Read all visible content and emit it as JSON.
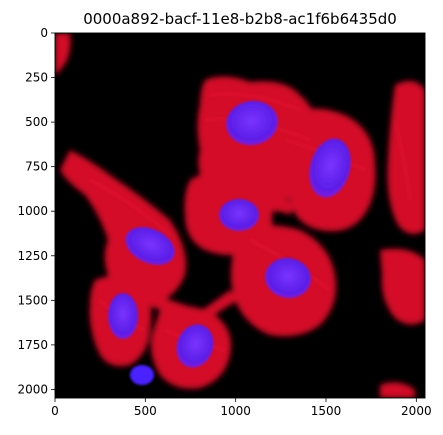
{
  "figure": {
    "title": "0000a892-bacf-11e8-b2b8-ac1f6b6435d0"
  },
  "axes": {
    "x_ticks": [
      "0",
      "500",
      "1000",
      "1500",
      "2000"
    ],
    "y_ticks": [
      "0",
      "250",
      "500",
      "750",
      "1000",
      "1250",
      "1500",
      "1750",
      "2000"
    ],
    "x_range": [
      0,
      2048
    ],
    "y_range": [
      2048,
      0
    ]
  },
  "image": {
    "description_colors": {
      "background": "#000000",
      "cytoplasm": "#ff1030",
      "nucleus": "#6a1cff"
    }
  }
}
